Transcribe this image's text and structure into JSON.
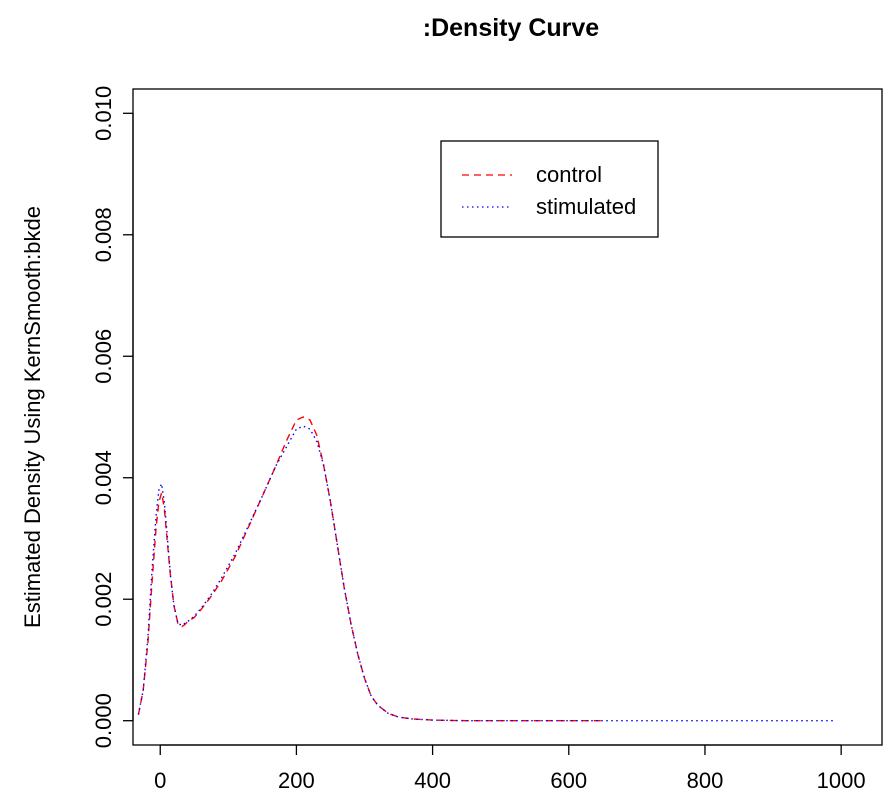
{
  "chart_data": {
    "type": "line",
    "title": ":Density Curve",
    "xlabel": "",
    "ylabel": "Estimated Density Using KernSmooth:bkde",
    "xlim": [
      -40,
      1060
    ],
    "ylim": [
      -0.0004,
      0.0104
    ],
    "x_ticks": [
      "0",
      "200",
      "400",
      "600",
      "800",
      "1000"
    ],
    "x_tick_values": [
      0,
      200,
      400,
      600,
      800,
      1000
    ],
    "y_ticks": [
      "0.000",
      "0.002",
      "0.004",
      "0.006",
      "0.008",
      "0.010"
    ],
    "y_tick_values": [
      0,
      0.002,
      0.004,
      0.006,
      0.008,
      0.01
    ],
    "grid": false,
    "legend_position": "top-right",
    "series": [
      {
        "name": "control",
        "color": "#ff0000",
        "line_style": "dashed",
        "x": [
          -32,
          -25,
          -18,
          -12,
          -6,
          -2,
          2,
          6,
          10,
          15,
          20,
          26,
          32,
          36,
          40,
          50,
          60,
          75,
          90,
          110,
          130,
          150,
          170,
          185,
          200,
          210,
          220,
          230,
          240,
          250,
          260,
          270,
          280,
          290,
          300,
          310,
          320,
          335,
          350,
          370,
          400,
          450,
          500,
          550,
          600,
          650
        ],
        "y": [
          0.0001,
          0.0005,
          0.0013,
          0.0023,
          0.0032,
          0.0036,
          0.00375,
          0.0035,
          0.003,
          0.0024,
          0.0019,
          0.0016,
          0.00155,
          0.00158,
          0.00163,
          0.0017,
          0.00183,
          0.00205,
          0.0023,
          0.0027,
          0.0032,
          0.0037,
          0.0042,
          0.0046,
          0.00495,
          0.005,
          0.00495,
          0.0047,
          0.0042,
          0.0036,
          0.0029,
          0.0022,
          0.0016,
          0.0011,
          0.0007,
          0.0004,
          0.00025,
          0.00012,
          6e-05,
          3e-05,
          1e-05,
          0.0,
          0.0,
          0.0,
          0.0,
          0.0
        ]
      },
      {
        "name": "stimulated",
        "color": "#0000ff",
        "line_style": "dotted",
        "x": [
          -32,
          -25,
          -18,
          -12,
          -6,
          -2,
          2,
          6,
          10,
          15,
          20,
          26,
          32,
          36,
          40,
          50,
          60,
          75,
          90,
          110,
          130,
          150,
          170,
          185,
          200,
          210,
          220,
          230,
          240,
          250,
          260,
          270,
          280,
          290,
          300,
          310,
          320,
          335,
          350,
          370,
          400,
          450,
          500,
          600,
          700,
          800,
          900,
          990
        ],
        "y": [
          0.0001,
          0.0005,
          0.0014,
          0.0025,
          0.0034,
          0.0038,
          0.0039,
          0.0036,
          0.0031,
          0.0024,
          0.0019,
          0.0016,
          0.00157,
          0.0016,
          0.00163,
          0.00172,
          0.00185,
          0.00208,
          0.00235,
          0.00275,
          0.00322,
          0.0037,
          0.0042,
          0.0045,
          0.0048,
          0.00485,
          0.0048,
          0.0046,
          0.0042,
          0.0036,
          0.0029,
          0.0022,
          0.0016,
          0.0011,
          0.0007,
          0.0004,
          0.00025,
          0.00012,
          6e-05,
          3e-05,
          1e-05,
          0.0,
          0.0,
          0.0,
          0.0,
          0.0,
          0.0,
          0.0
        ]
      }
    ]
  }
}
